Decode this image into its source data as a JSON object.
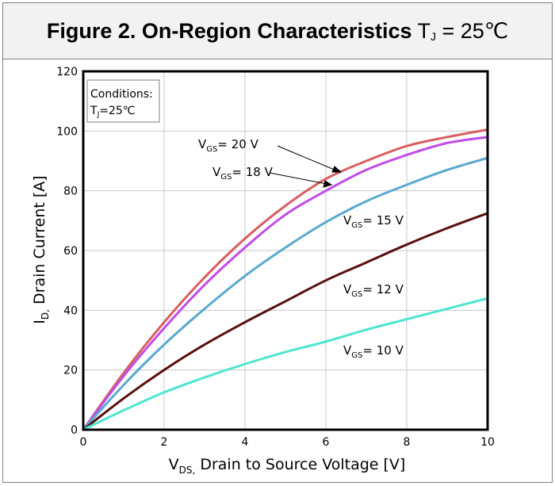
{
  "figure": {
    "title_bold": "Figure 2. On-Region Characteristics",
    "title_t": "T",
    "title_sub": "J",
    "title_rest": " = 25℃"
  },
  "conditions": {
    "heading": "Conditions:",
    "t": "T",
    "sub": "J",
    "rest": "=25℃"
  },
  "chart_data": {
    "type": "line",
    "title": "Figure 2. On-Region Characteristics TJ = 25℃",
    "x_axis": {
      "sym": "V",
      "sub": "DS,",
      "text": " Drain to Source Voltage [V]",
      "min": 0,
      "max": 10,
      "ticks": [
        0,
        2,
        4,
        6,
        8,
        10
      ],
      "tick_labels": [
        "0",
        "2",
        "4",
        "6",
        "8",
        "10"
      ]
    },
    "y_axis": {
      "sym": "I",
      "sub": "D,",
      "text": " Drain Current [A]",
      "min": 0,
      "max": 120,
      "ticks": [
        0,
        20,
        40,
        60,
        80,
        100,
        120
      ],
      "tick_labels": [
        "0",
        "20",
        "40",
        "60",
        "80",
        "100",
        "120"
      ]
    },
    "grid": true,
    "x": [
      0,
      1,
      2,
      3,
      4,
      5,
      6,
      7,
      8,
      9,
      10
    ],
    "series": [
      {
        "name": "VGS= 20 V",
        "sym": "V",
        "sub": "GS",
        "text": "= 20 V",
        "color": "#d95f5f",
        "values": [
          0,
          19,
          36,
          51,
          64,
          75,
          84,
          90,
          95,
          98,
          100.5
        ]
      },
      {
        "name": "VGS= 18 V",
        "sym": "V",
        "sub": "GS",
        "text": "= 18 V",
        "color": "#c04ce8",
        "values": [
          0,
          18,
          34,
          48.5,
          61,
          72,
          80,
          87,
          92,
          96,
          98
        ]
      },
      {
        "name": "VGS= 15 V",
        "sym": "V",
        "sub": "GS",
        "text": "= 15 V",
        "color": "#5aa9cf",
        "values": [
          0,
          15,
          28.5,
          40.5,
          51.5,
          61,
          69.5,
          76.5,
          82,
          87,
          91
        ]
      },
      {
        "name": "VGS= 12 V",
        "sym": "V",
        "sub": "GS",
        "text": "= 12 V",
        "color": "#5a1010",
        "values": [
          0,
          10.5,
          20,
          28.5,
          36,
          43,
          50,
          56,
          62,
          67.5,
          72.5
        ]
      },
      {
        "name": "VGS= 10 V",
        "sym": "V",
        "sub": "GS",
        "text": "= 10 V",
        "color": "#4de6cf",
        "values": [
          0,
          6.5,
          12.5,
          17.5,
          22,
          26,
          29.5,
          33.5,
          37,
          40.5,
          44
        ]
      }
    ]
  }
}
